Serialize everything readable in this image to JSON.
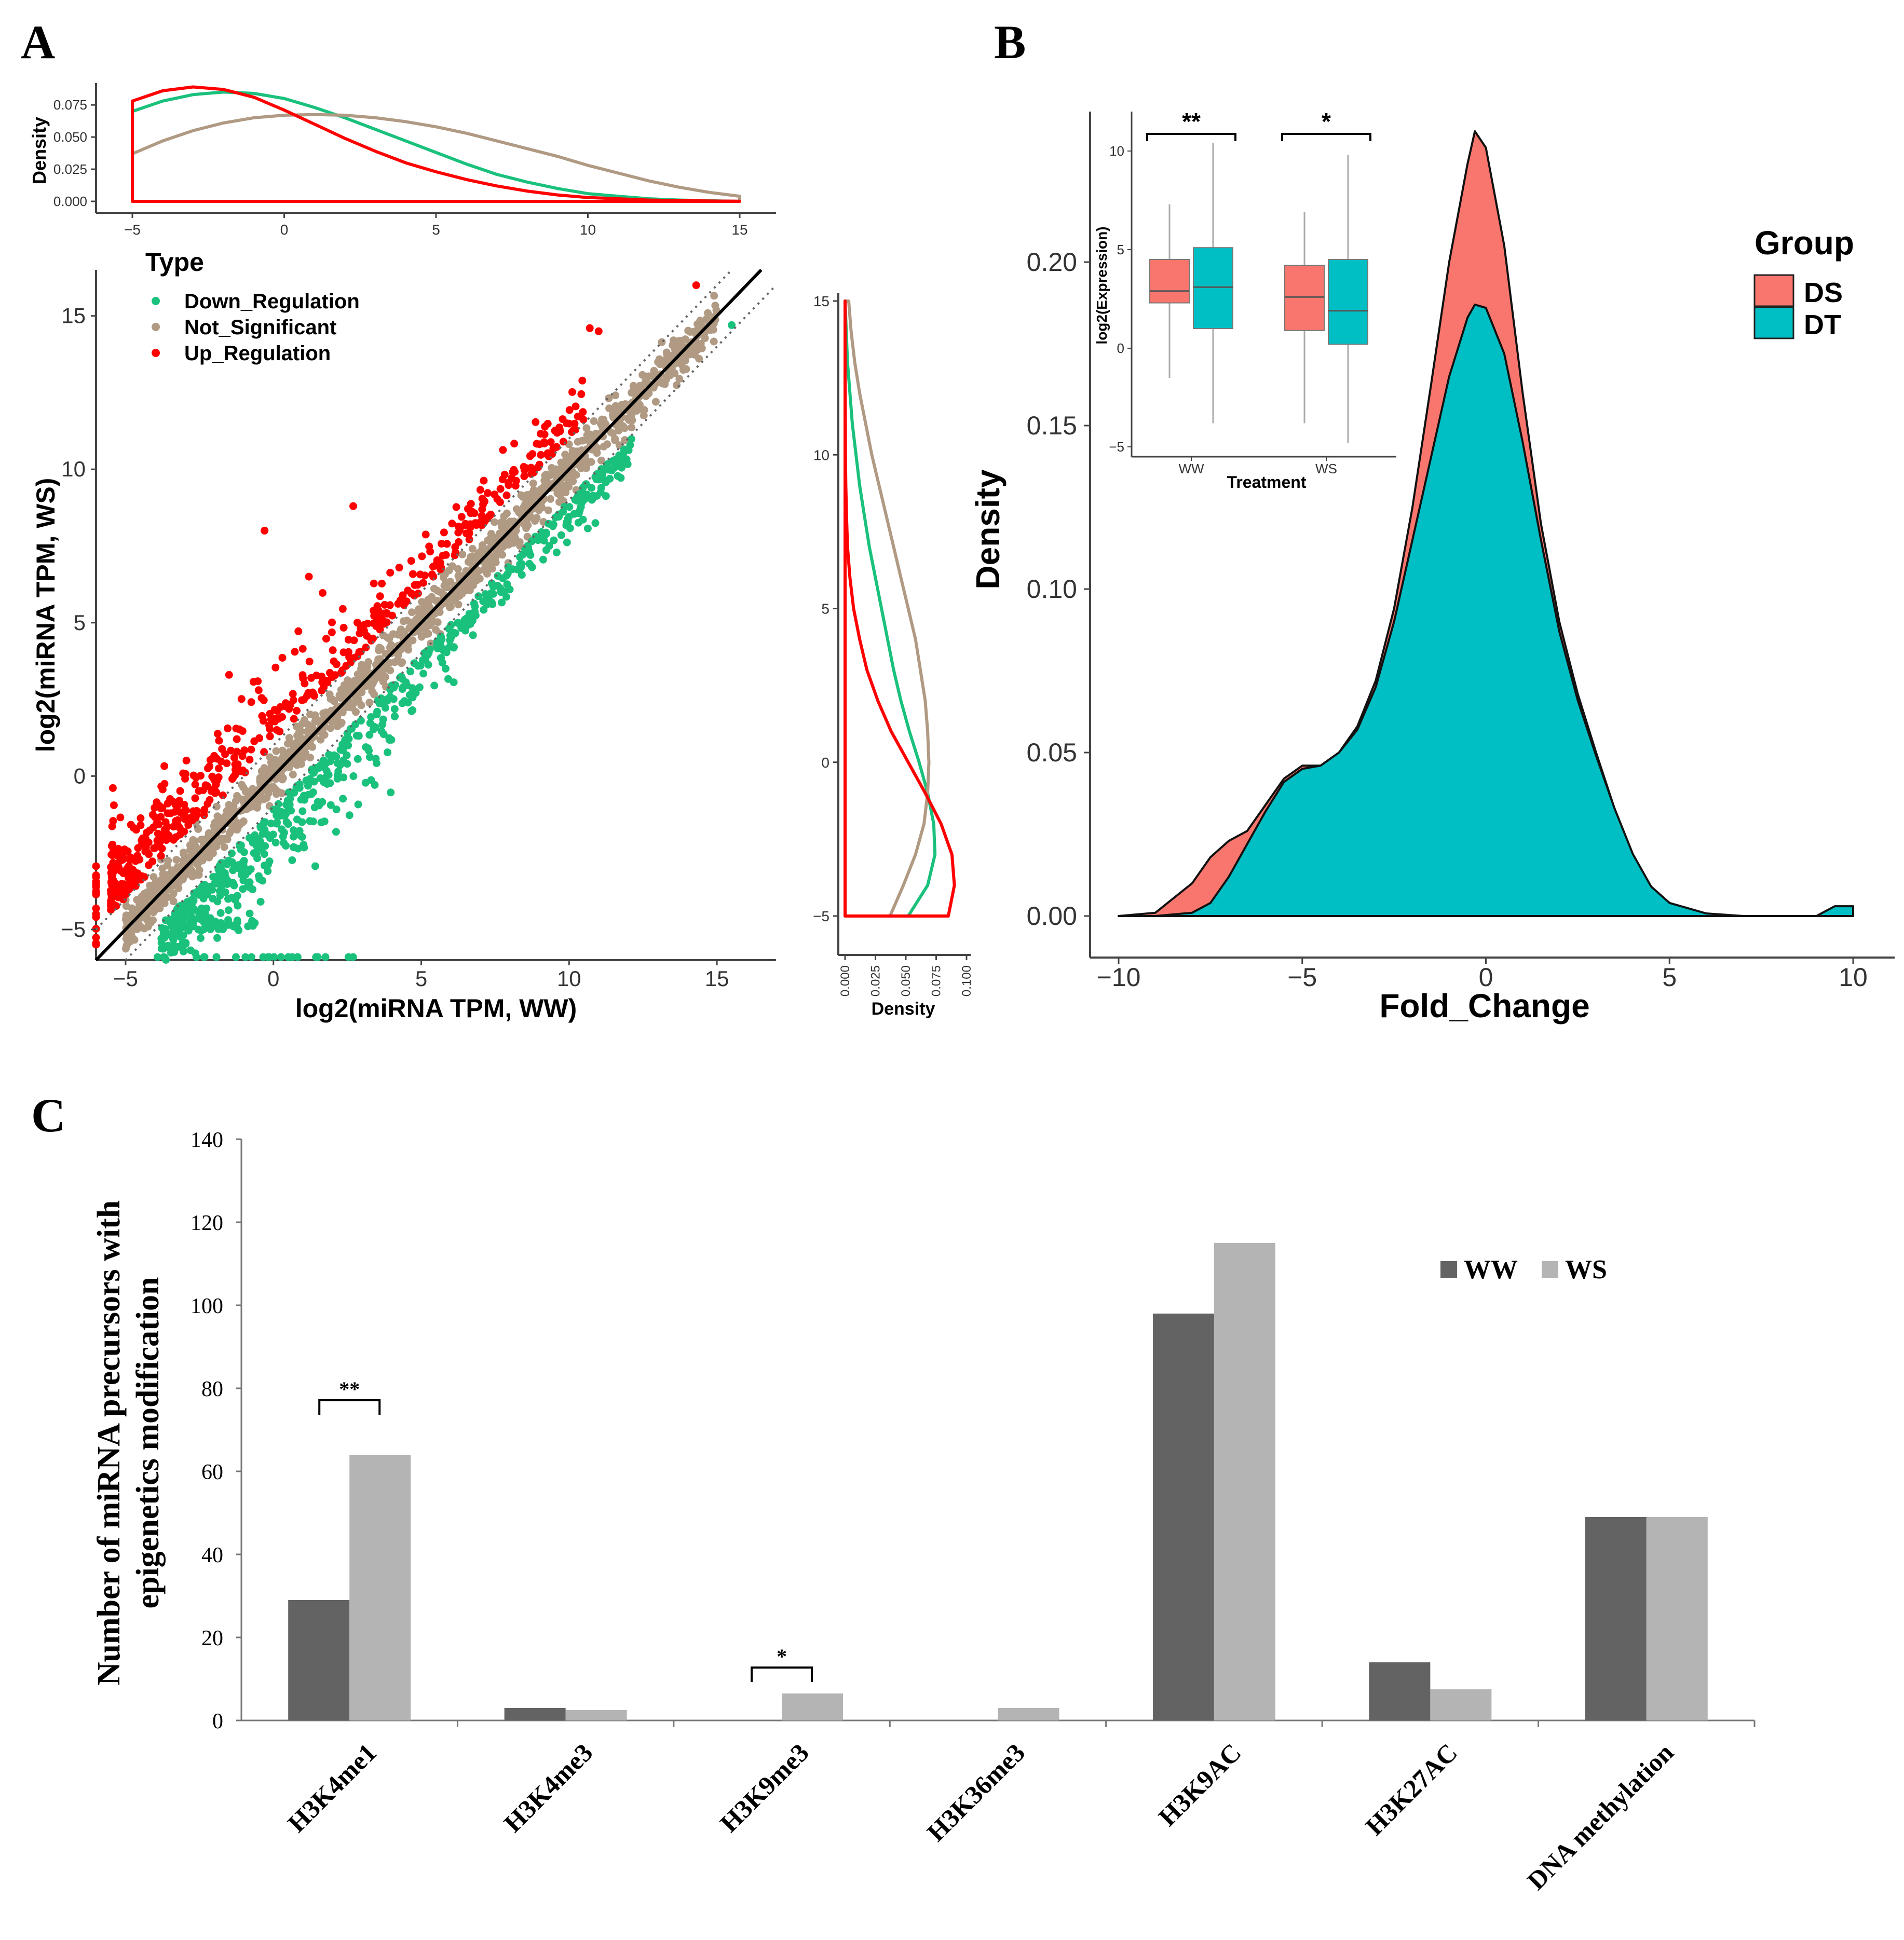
{
  "colors": {
    "down": "#1ac17c",
    "ns": "#b09a83",
    "up": "#ff0000",
    "ds": "#f8766d",
    "dt": "#00bfc4",
    "ww_bar": "#636363",
    "ws_bar": "#b4b4b4",
    "axis": "#444444"
  },
  "chart_data": [
    {
      "panel": "A",
      "type": "scatter",
      "panel_label": "A",
      "xlabel": "log2(miRNA TPM, WW)",
      "ylabel": "log2(miRNA TPM, WS)",
      "xlim": [
        -6,
        17
      ],
      "ylim": [
        -6,
        16.5
      ],
      "x_ticks": [
        -5,
        0,
        5,
        10,
        15
      ],
      "y_ticks": [
        -5,
        0,
        5,
        10,
        15
      ],
      "legend": {
        "title": "Type",
        "items": [
          "Down_Regulation",
          "Not_Significant",
          "Up_Regulation"
        ]
      },
      "series": [
        {
          "name": "Down_Regulation",
          "description": "points below the diagonal band"
        },
        {
          "name": "Not_Significant",
          "description": "points along the diagonal"
        },
        {
          "name": "Up_Regulation",
          "description": "points above the diagonal band"
        }
      ],
      "reference_lines": [
        {
          "type": "identity",
          "intercept": 0,
          "slope": 1
        },
        {
          "type": "dotted",
          "intercept": 1,
          "slope": 1
        },
        {
          "type": "dotted",
          "intercept": -1,
          "slope": 1
        }
      ],
      "top_density": {
        "ylabel": "Density",
        "xlim": [
          -5,
          15
        ],
        "ylim": [
          0,
          0.09
        ],
        "x_ticks": [
          -5,
          0,
          5,
          10,
          15
        ],
        "y_tick_labels": [
          "0.000",
          "0.025",
          "0.050",
          "0.075"
        ],
        "series": [
          {
            "name": "Down_Regulation",
            "x": [
              -5,
              -4,
              -3,
              -2,
              -1,
              0,
              1,
              2,
              3,
              4,
              5,
              6,
              7,
              8,
              9,
              10,
              11,
              12,
              13,
              14,
              15
            ],
            "y": [
              0.07,
              0.078,
              0.083,
              0.085,
              0.084,
              0.08,
              0.073,
              0.065,
              0.056,
              0.047,
              0.038,
              0.029,
              0.021,
              0.015,
              0.01,
              0.006,
              0.004,
              0.002,
              0.001,
              0.0005,
              0.0
            ]
          },
          {
            "name": "Not_Significant",
            "x": [
              -5,
              -4,
              -3,
              -2,
              -1,
              0,
              1,
              2,
              3,
              4,
              5,
              6,
              7,
              8,
              9,
              10,
              11,
              12,
              13,
              14,
              15
            ],
            "y": [
              0.037,
              0.047,
              0.055,
              0.061,
              0.065,
              0.067,
              0.0675,
              0.067,
              0.065,
              0.062,
              0.058,
              0.053,
              0.047,
              0.041,
              0.035,
              0.028,
              0.022,
              0.016,
              0.011,
              0.007,
              0.004
            ]
          },
          {
            "name": "Up_Regulation",
            "x": [
              -5,
              -4,
              -3,
              -2,
              -1,
              0,
              1,
              2,
              3,
              4,
              5,
              6,
              7,
              8,
              9,
              10,
              11,
              12,
              13,
              14,
              15
            ],
            "y": [
              0.078,
              0.086,
              0.089,
              0.087,
              0.081,
              0.071,
              0.06,
              0.049,
              0.039,
              0.03,
              0.023,
              0.017,
              0.012,
              0.008,
              0.005,
              0.003,
              0.002,
              0.001,
              0.0006,
              0.0003,
              0.0001
            ]
          }
        ]
      },
      "right_density": {
        "xlabel": "Density",
        "xlim": [
          0,
          0.1
        ],
        "ylim": [
          -5,
          15
        ],
        "x_tick_labels": [
          "0.000",
          "0.025",
          "0.050",
          "0.075",
          "0.100"
        ],
        "y_ticks": [
          -5,
          0,
          5,
          10,
          15
        ],
        "series": [
          {
            "name": "Down_Regulation",
            "y": [
              -5,
              -4,
              -3,
              -2,
              -1,
              0,
              1,
              2,
              3,
              4,
              5,
              6,
              7,
              8,
              9,
              10,
              11,
              12,
              13,
              14,
              15
            ],
            "x": [
              0.052,
              0.068,
              0.074,
              0.073,
              0.068,
              0.061,
              0.053,
              0.046,
              0.04,
              0.035,
              0.03,
              0.025,
              0.02,
              0.016,
              0.012,
              0.009,
              0.006,
              0.004,
              0.002,
              0.001,
              0.0
            ]
          },
          {
            "name": "Not_Significant",
            "y": [
              -5,
              -4,
              -3,
              -2,
              -1,
              0,
              1,
              2,
              3,
              4,
              5,
              6,
              7,
              8,
              9,
              10,
              11,
              12,
              13,
              14,
              15
            ],
            "x": [
              0.037,
              0.048,
              0.058,
              0.065,
              0.068,
              0.069,
              0.068,
              0.066,
              0.062,
              0.058,
              0.052,
              0.046,
              0.04,
              0.034,
              0.028,
              0.022,
              0.017,
              0.012,
              0.008,
              0.005,
              0.003
            ]
          },
          {
            "name": "Up_Regulation",
            "y": [
              -5,
              -4,
              -3,
              -2,
              -1,
              0,
              1,
              2,
              3,
              4,
              5,
              6,
              7,
              8,
              9,
              10,
              11,
              12,
              13,
              14,
              15
            ],
            "x": [
              0.085,
              0.09,
              0.088,
              0.079,
              0.066,
              0.052,
              0.038,
              0.027,
              0.018,
              0.012,
              0.007,
              0.004,
              0.002,
              0.0012,
              0.0006,
              0.0003,
              0.0002,
              0.0001,
              0.0,
              0.0,
              0.0
            ]
          }
        ]
      }
    },
    {
      "panel": "B",
      "type": "area",
      "panel_label": "B",
      "xlabel": "Fold_Change",
      "ylabel": "Density",
      "xlim": [
        -11,
        11
      ],
      "ylim": [
        -0.01,
        0.245
      ],
      "x_ticks": [
        -10,
        -5,
        0,
        5,
        10
      ],
      "y_tick_labels": [
        "0.00",
        "0.05",
        "0.10",
        "0.15",
        "0.20"
      ],
      "legend": {
        "title": "Group",
        "items": [
          "DS",
          "DT"
        ]
      },
      "series": [
        {
          "name": "DS",
          "x": [
            -10,
            -9,
            -8,
            -7.5,
            -7,
            -6.5,
            -6,
            -5.5,
            -5,
            -4.5,
            -4,
            -3.5,
            -3,
            -2.5,
            -2,
            -1.5,
            -1,
            -0.5,
            -0.3,
            0,
            0.5,
            1,
            1.5,
            2,
            2.5,
            3,
            3.5,
            4,
            4.5,
            5,
            6,
            7,
            8,
            9,
            9.5,
            10
          ],
          "y": [
            0.0,
            0.001,
            0.01,
            0.018,
            0.023,
            0.026,
            0.034,
            0.042,
            0.046,
            0.046,
            0.05,
            0.058,
            0.072,
            0.094,
            0.125,
            0.162,
            0.2,
            0.23,
            0.24,
            0.235,
            0.205,
            0.16,
            0.12,
            0.09,
            0.068,
            0.05,
            0.033,
            0.018,
            0.008,
            0.003,
            0.0005,
            0.0,
            0.0,
            0.0,
            0.0,
            0.0
          ]
        },
        {
          "name": "DT",
          "x": [
            -10,
            -9,
            -8,
            -7.5,
            -7,
            -6.5,
            -6,
            -5.5,
            -5,
            -4.5,
            -4,
            -3.5,
            -3,
            -2.5,
            -2,
            -1.5,
            -1,
            -0.5,
            -0.3,
            0,
            0.5,
            1,
            1.5,
            2,
            2.5,
            3,
            3.5,
            4,
            4.5,
            5,
            6,
            7,
            8,
            9,
            9.5,
            10
          ],
          "y": [
            0.0,
            0.0,
            0.001,
            0.004,
            0.012,
            0.022,
            0.032,
            0.041,
            0.045,
            0.046,
            0.05,
            0.057,
            0.07,
            0.09,
            0.115,
            0.14,
            0.165,
            0.183,
            0.187,
            0.186,
            0.172,
            0.145,
            0.115,
            0.087,
            0.066,
            0.049,
            0.033,
            0.019,
            0.009,
            0.004,
            0.0008,
            0.0,
            0.0,
            0.0,
            0.003,
            0.003
          ]
        }
      ],
      "inset": {
        "type": "boxplot",
        "xlabel": "Treatment",
        "ylabel": "log2(Expression)",
        "categories": [
          "WW",
          "WS"
        ],
        "ylim": [
          -5.5,
          12
        ],
        "y_ticks": [
          -5,
          0,
          5,
          10
        ],
        "significance": [
          "**",
          "*"
        ],
        "boxes": [
          {
            "category": "WW",
            "group": "DS",
            "min": -1.5,
            "q1": 2.3,
            "median": 2.9,
            "q3": 4.5,
            "max": 7.3
          },
          {
            "category": "WW",
            "group": "DT",
            "min": -3.8,
            "q1": 1.0,
            "median": 3.1,
            "q3": 5.1,
            "max": 10.4
          },
          {
            "category": "WS",
            "group": "DS",
            "min": -3.8,
            "q1": 0.9,
            "median": 2.6,
            "q3": 4.2,
            "max": 6.9
          },
          {
            "category": "WS",
            "group": "DT",
            "min": -4.8,
            "q1": 0.2,
            "median": 1.9,
            "q3": 4.5,
            "max": 9.8
          }
        ]
      }
    },
    {
      "panel": "C",
      "type": "bar",
      "panel_label": "C",
      "ylabel_line1": "Number of miRNA precursors with",
      "ylabel_line2": "epigenetics modification",
      "ylim": [
        0,
        140
      ],
      "y_ticks": [
        0,
        20,
        40,
        60,
        80,
        100,
        120,
        140
      ],
      "categories": [
        "H3K4me1",
        "H3K4me3",
        "H3K9me3",
        "H3K36me3",
        "H3K9AC",
        "H3K27AC",
        "DNA methylation"
      ],
      "series": [
        {
          "name": "WW",
          "values": [
            29,
            3,
            0,
            0,
            98,
            14,
            49
          ]
        },
        {
          "name": "WS",
          "values": [
            64,
            2.5,
            6.5,
            3,
            115,
            7.5,
            49
          ]
        }
      ],
      "legend": [
        "WW",
        "WS"
      ],
      "significance": [
        {
          "category": "H3K4me1",
          "label": "**"
        },
        {
          "category": "H3K9me3",
          "label": "*"
        }
      ]
    }
  ]
}
